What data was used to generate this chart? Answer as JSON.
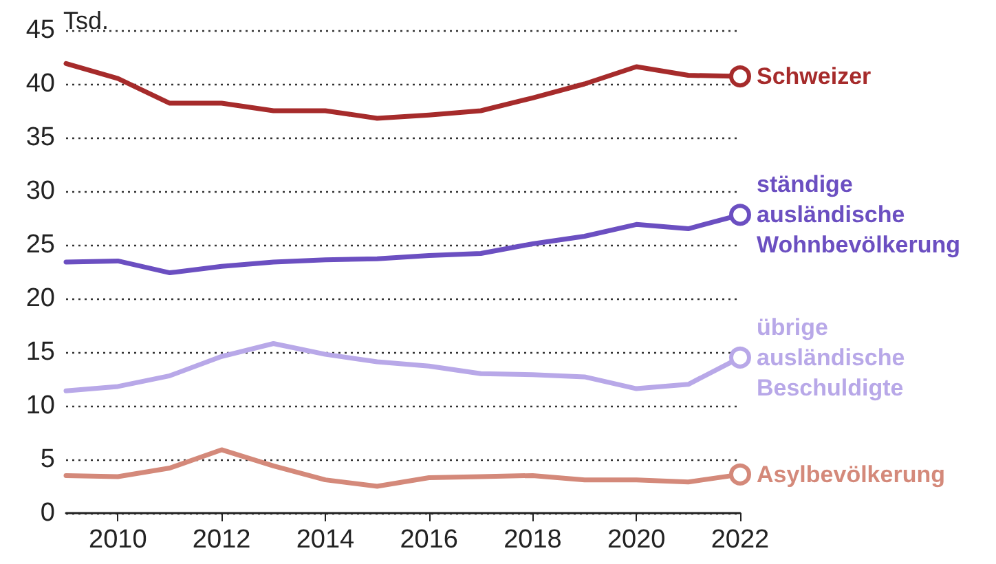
{
  "chart_data": {
    "type": "line",
    "ylabel": "Tsd.",
    "x": [
      2009,
      2010,
      2011,
      2012,
      2013,
      2014,
      2015,
      2016,
      2017,
      2018,
      2019,
      2020,
      2021,
      2022
    ],
    "xlim": [
      2009,
      2022
    ],
    "xticks": [
      2010,
      2012,
      2014,
      2016,
      2018,
      2020,
      2022
    ],
    "ylim": [
      0,
      45
    ],
    "yticks": [
      0,
      5,
      10,
      15,
      20,
      25,
      30,
      35,
      40,
      45
    ],
    "grid": "y",
    "legend": false,
    "line_style": "solid",
    "series": [
      {
        "name": "Schweizer",
        "color": "#a62b2b",
        "values": [
          41.9,
          40.5,
          38.2,
          38.2,
          37.5,
          37.5,
          36.8,
          37.1,
          37.5,
          38.7,
          40.0,
          41.6,
          40.8,
          40.7
        ]
      },
      {
        "name": "ständige ausländische Wohnbevölkerung",
        "color": "#6b4fc1",
        "values": [
          23.4,
          23.5,
          22.4,
          23.0,
          23.4,
          23.6,
          23.7,
          24.0,
          24.2,
          25.1,
          25.8,
          26.9,
          26.5,
          27.8
        ]
      },
      {
        "name": "übrige ausländische Beschuldigte",
        "color": "#b8a8e8",
        "values": [
          11.4,
          11.8,
          12.8,
          14.6,
          15.8,
          14.8,
          14.1,
          13.7,
          13.0,
          12.9,
          12.7,
          11.6,
          12.0,
          14.5
        ]
      },
      {
        "name": "Asylbevölkerung",
        "color": "#d4897a",
        "values": [
          3.5,
          3.4,
          4.2,
          5.9,
          4.4,
          3.1,
          2.5,
          3.3,
          3.4,
          3.5,
          3.1,
          3.1,
          2.9,
          3.6
        ]
      }
    ]
  }
}
